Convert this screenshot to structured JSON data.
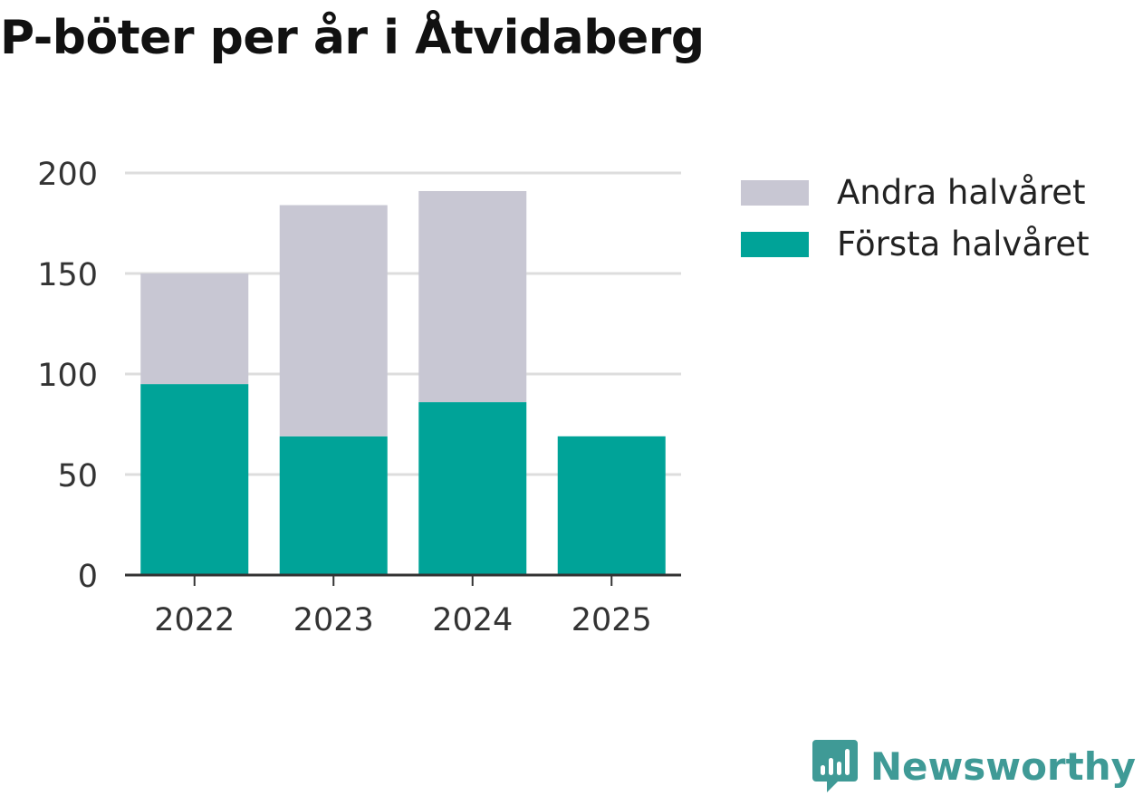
{
  "chart_data": {
    "type": "bar",
    "stacked": true,
    "title": "P-böter per år i Åtvidaberg",
    "categories": [
      "2022",
      "2023",
      "2024",
      "2025"
    ],
    "series": [
      {
        "name": "Första halvåret",
        "values": [
          95,
          69,
          86,
          69
        ],
        "color": "#00a398"
      },
      {
        "name": "Andra halvåret",
        "values": [
          55,
          115,
          105,
          0
        ],
        "color": "#c8c7d3"
      }
    ],
    "ylim": [
      0,
      200
    ],
    "yticks": [
      0,
      50,
      100,
      150,
      200
    ],
    "xlabel": "",
    "ylabel": "",
    "grid": true,
    "legend": [
      {
        "label": "Andra halvåret",
        "color": "#c8c7d3"
      },
      {
        "label": "Första halvåret",
        "color": "#00a398"
      }
    ],
    "legend_position": "right"
  },
  "brand": {
    "name": "Newsworthy",
    "icon": "newsworthy-logo-icon",
    "color": "#3f9a96"
  }
}
